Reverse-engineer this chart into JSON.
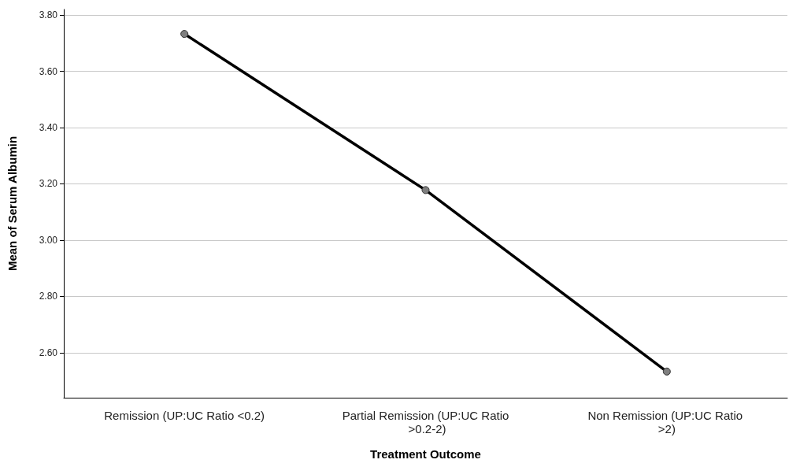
{
  "chart_data": {
    "type": "line",
    "xlabel": "Treatment Outcome",
    "ylabel": "Mean of Serum Albumin",
    "categories": [
      "Remission (UP:UC Ratio <0.2)",
      "Partial Remission (UP:UC Ratio >0.2-2)",
      "Non Remission (UP:UC Ratio >2)"
    ],
    "series": [
      {
        "color": "#000000",
        "values": [
          3.733,
          3.178,
          2.533
        ]
      }
    ],
    "ylim": [
      2.44,
      3.82
    ],
    "yticks": [
      {
        "value": 2.6,
        "label": "2.60"
      },
      {
        "value": 2.8,
        "label": "2.80"
      },
      {
        "value": 3.0,
        "label": "3.00"
      },
      {
        "value": 3.2,
        "label": "3.20"
      },
      {
        "value": 3.4,
        "label": "3.40"
      },
      {
        "value": 3.6,
        "label": "3.60"
      },
      {
        "value": 3.8,
        "label": "3.80"
      }
    ],
    "grid": "y",
    "marker": "circle",
    "line_style": "solid"
  }
}
